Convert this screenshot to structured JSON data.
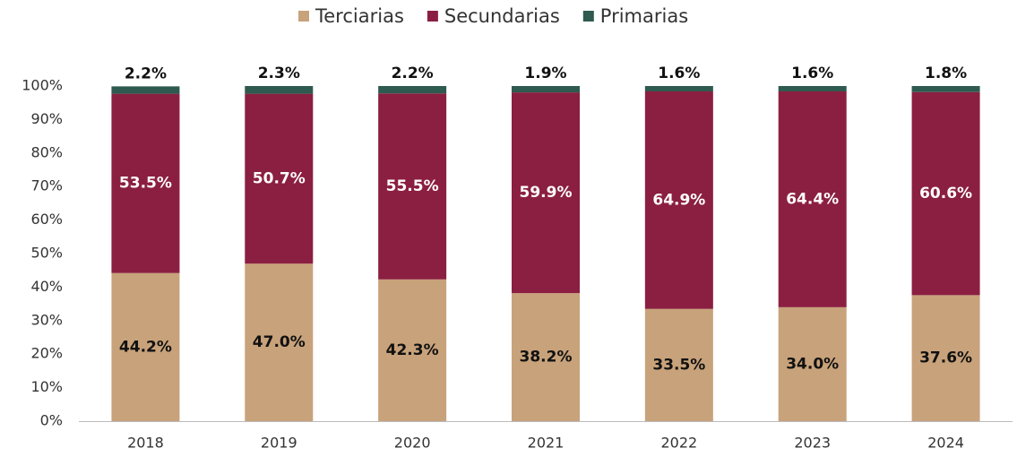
{
  "chart_data": {
    "type": "stacked_bar",
    "categories": [
      "2018",
      "2019",
      "2020",
      "2021",
      "2022",
      "2023",
      "2024"
    ],
    "series": [
      {
        "name": "Terciarias",
        "color": "#c8a27a",
        "label_color": "#111111",
        "values": [
          44.2,
          47.0,
          42.3,
          38.2,
          33.5,
          34.0,
          37.6
        ],
        "value_labels": [
          "44.2%",
          "47.0%",
          "42.3%",
          "38.2%",
          "33.5%",
          "34.0%",
          "37.6%"
        ]
      },
      {
        "name": "Secundarias",
        "color": "#8b1f41",
        "label_color": "#ffffff",
        "values": [
          53.5,
          50.7,
          55.5,
          59.9,
          64.9,
          64.4,
          60.6
        ],
        "value_labels": [
          "53.5%",
          "50.7%",
          "55.5%",
          "59.9%",
          "64.9%",
          "64.4%",
          "60.6%"
        ]
      },
      {
        "name": "Primarias",
        "color": "#2e5a4f",
        "label_color": "#111111",
        "values": [
          2.2,
          2.3,
          2.2,
          1.9,
          1.6,
          1.6,
          1.8
        ],
        "value_labels": [
          "2.2%",
          "2.3%",
          "2.2%",
          "1.9%",
          "1.6%",
          "1.6%",
          "1.8%"
        ]
      }
    ],
    "ylim": [
      0,
      100
    ],
    "yticks": [
      {
        "value": 0,
        "label": "0%"
      },
      {
        "value": 10,
        "label": "10%"
      },
      {
        "value": 20,
        "label": "20%"
      },
      {
        "value": 30,
        "label": "30%"
      },
      {
        "value": 40,
        "label": "40%"
      },
      {
        "value": 50,
        "label": "50%"
      },
      {
        "value": 60,
        "label": "60%"
      },
      {
        "value": 70,
        "label": "70%"
      },
      {
        "value": 80,
        "label": "80%"
      },
      {
        "value": 90,
        "label": "90%"
      },
      {
        "value": 100,
        "label": "100%"
      }
    ],
    "grid": false,
    "legend": "top"
  }
}
